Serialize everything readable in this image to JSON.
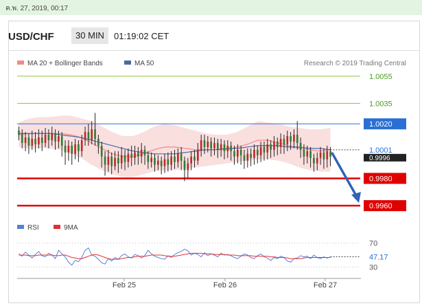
{
  "header": {
    "date_stamp": "ค.พ. 27, 2019, 00:17",
    "pair": "USD/CHF",
    "timeframe": "30 MIN",
    "clock": "01:19:02 CET"
  },
  "legend": {
    "bb_label": "MA 20 + Bollinger Bands",
    "ma50_label": "MA 50",
    "credit": "Research © 2019 Trading Central",
    "rsi_label": "RSI",
    "ma9_label": "9MA"
  },
  "colors": {
    "bull": "#c0262c",
    "bear": "#2e7d32",
    "wick": "#222222",
    "bb_fill": "#fadcdc",
    "ma20": "#f08a8a",
    "ma50": "#4a6aa5",
    "resistance": "#8cc63f",
    "pivot": "#2a6fd6",
    "support": "#e00000",
    "rsi": "#5b7fd6",
    "rsi_ma": "#e03030",
    "arrow": "#2f63b6"
  },
  "chart_data": {
    "type": "candlestick",
    "ylim": [
      0.9952,
      1.0068
    ],
    "x_ticks": [
      "Feb 25",
      "Feb 26",
      "Feb 27"
    ],
    "current_price": "1.0001",
    "current_price_alt": "0.9996",
    "levels": [
      {
        "label": "1.0055",
        "value": 1.0055,
        "kind": "resistance"
      },
      {
        "label": "1.0035",
        "value": 1.0035,
        "kind": "resistance"
      },
      {
        "label": "1.0020",
        "value": 1.002,
        "kind": "pivot"
      },
      {
        "label": "0.9980",
        "value": 0.998,
        "kind": "support"
      },
      {
        "label": "0.9960",
        "value": 0.996,
        "kind": "support"
      }
    ],
    "forecast_arrow": {
      "from": 0.9999,
      "to": 0.9962
    },
    "candles": [
      [
        1.0015,
        1.0012,
        1.0018,
        1.0008
      ],
      [
        1.0012,
        1.0006,
        1.0016,
        1.0002
      ],
      [
        1.0006,
        1.001,
        1.0014,
        1.0
      ],
      [
        1.001,
        1.0004,
        1.0013,
        0.9998
      ],
      [
        1.0004,
        1.0009,
        1.0015,
        1.0001
      ],
      [
        1.0009,
        1.0005,
        1.0014,
        0.9999
      ],
      [
        1.0005,
        1.001,
        1.0016,
        1.0002
      ],
      [
        1.001,
        1.0006,
        1.0015,
        1.0
      ],
      [
        1.0006,
        1.0012,
        1.0017,
        1.0003
      ],
      [
        1.0012,
        1.0008,
        1.0016,
        1.0002
      ],
      [
        1.0008,
        1.0013,
        1.0018,
        1.0004
      ],
      [
        1.0013,
        1.0007,
        1.0016,
        1.0001
      ],
      [
        1.0007,
        1.0011,
        1.0015,
        1.0002
      ],
      [
        1.0011,
        1.0004,
        1.0014,
        0.9996
      ],
      [
        1.0004,
        0.9999,
        1.0008,
        0.999
      ],
      [
        0.9999,
        1.0004,
        1.0008,
        0.9993
      ],
      [
        1.0004,
        0.9998,
        1.0007,
        0.999
      ],
      [
        0.9998,
        1.0005,
        1.0009,
        0.9994
      ],
      [
        1.0005,
        1.0,
        1.0008,
        0.9992
      ],
      [
        1.0,
        1.0008,
        1.0012,
        0.9996
      ],
      [
        1.0008,
        1.0014,
        1.0018,
        1.0004
      ],
      [
        1.0014,
        1.0008,
        1.002,
        1.0004
      ],
      [
        1.0008,
        1.0016,
        1.0022,
        1.0005
      ],
      [
        1.0016,
        1.0009,
        1.0028,
        1.0004
      ],
      [
        1.0009,
        1.0004,
        1.0012,
        0.9998
      ],
      [
        1.0004,
        0.9996,
        1.0007,
        0.9988
      ],
      [
        0.9996,
        0.999,
        1.0,
        0.9982
      ],
      [
        0.999,
        0.9996,
        1.0001,
        0.9985
      ],
      [
        0.9996,
        0.9989,
        0.9999,
        0.9983
      ],
      [
        0.9989,
        0.9995,
        1.0,
        0.9986
      ],
      [
        0.9995,
        0.9991,
        1.0,
        0.9984
      ],
      [
        0.9991,
        0.9997,
        1.0003,
        0.9987
      ],
      [
        0.9997,
        0.9992,
        1.0001,
        0.9986
      ],
      [
        0.9992,
        0.9998,
        1.0002,
        0.9988
      ],
      [
        0.9998,
        0.9995,
        1.0004,
        0.9989
      ],
      [
        0.9995,
        0.9999,
        1.0004,
        0.999
      ],
      [
        0.9999,
        0.9996,
        1.0003,
        0.999
      ],
      [
        0.9996,
        1.0001,
        1.0006,
        0.9991
      ],
      [
        1.0001,
        0.9997,
        1.0004,
        0.999
      ],
      [
        0.9997,
        0.9992,
        1.0,
        0.9987
      ],
      [
        0.9992,
        0.9995,
        0.9999,
        0.9988
      ],
      [
        0.9995,
        0.999,
        0.9998,
        0.9985
      ],
      [
        0.999,
        0.9993,
        0.9997,
        0.9986
      ],
      [
        0.9993,
        0.9989,
        0.9996,
        0.9983
      ],
      [
        0.9989,
        0.9994,
        0.9998,
        0.9984
      ],
      [
        0.9994,
        0.999,
        0.9999,
        0.9985
      ],
      [
        0.999,
        0.9996,
        1.0,
        0.9986
      ],
      [
        0.9996,
        0.9992,
        1.0001,
        0.9987
      ],
      [
        0.9992,
        0.9998,
        1.0002,
        0.9988
      ],
      [
        0.9998,
        0.9993,
        1.0003,
        0.9986
      ],
      [
        0.9993,
        0.9986,
        0.9996,
        0.9978
      ],
      [
        0.9986,
        0.9991,
        0.9995,
        0.998
      ],
      [
        0.9991,
        0.9996,
        1.0,
        0.9986
      ],
      [
        0.9996,
        0.9993,
        1.0001,
        0.9988
      ],
      [
        0.9993,
        1.0001,
        1.0006,
        0.999
      ],
      [
        1.0001,
        1.0008,
        1.0012,
        0.9996
      ],
      [
        1.0008,
        1.0003,
        1.0012,
        0.9998
      ],
      [
        1.0003,
        1.0007,
        1.0011,
        0.9999
      ],
      [
        1.0007,
        1.0002,
        1.001,
        0.9996
      ],
      [
        1.0002,
        1.0006,
        1.001,
        0.9997
      ],
      [
        1.0006,
        1.0001,
        1.0009,
        0.9995
      ],
      [
        1.0001,
        1.0005,
        1.0009,
        0.9996
      ],
      [
        1.0005,
        1.0,
        1.0008,
        0.9994
      ],
      [
        1.0,
        1.0004,
        1.0008,
        0.9995
      ],
      [
        1.0004,
        1.0,
        1.0007,
        0.9993
      ],
      [
        1.0,
        0.9996,
        1.0004,
        0.999
      ],
      [
        0.9996,
        1.0001,
        1.0005,
        0.9991
      ],
      [
        1.0001,
        0.9997,
        1.0004,
        0.999
      ],
      [
        0.9997,
        0.9993,
        1.0001,
        0.9987
      ],
      [
        0.9993,
        0.9998,
        1.0002,
        0.9988
      ],
      [
        0.9998,
        0.9995,
        1.0002,
        0.9989
      ],
      [
        0.9995,
        1.0001,
        1.0005,
        0.999
      ],
      [
        1.0001,
        0.9997,
        1.0004,
        0.9991
      ],
      [
        0.9997,
        1.0003,
        1.0007,
        0.9992
      ],
      [
        1.0003,
        0.9999,
        1.0007,
        0.9993
      ],
      [
        0.9999,
        1.0005,
        1.0009,
        0.9994
      ],
      [
        1.0005,
        1.0001,
        1.0008,
        0.9995
      ],
      [
        1.0001,
        1.0007,
        1.0011,
        0.9996
      ],
      [
        1.0007,
        1.0003,
        1.001,
        0.9997
      ],
      [
        1.0003,
        1.0009,
        1.0013,
        0.9998
      ],
      [
        1.0009,
        1.0005,
        1.0012,
        0.9998
      ],
      [
        1.0005,
        1.0011,
        1.0015,
        1.0
      ],
      [
        1.0011,
        1.0007,
        1.0014,
        1.0001
      ],
      [
        1.0007,
        1.0012,
        1.0016,
        1.0002
      ],
      [
        1.0012,
        1.0006,
        1.0022,
        1.0001
      ],
      [
        1.0006,
        1.0001,
        1.001,
        0.9995
      ],
      [
        1.0001,
        0.9996,
        1.0005,
        0.999
      ],
      [
        0.9996,
        1.0,
        1.0004,
        0.9991
      ],
      [
        1.0,
        0.9995,
        1.0003,
        0.9988
      ],
      [
        0.9995,
        0.9991,
        0.9998,
        0.9985
      ],
      [
        0.9991,
        0.9995,
        0.9999,
        0.9986
      ],
      [
        0.9995,
        0.9999,
        1.0003,
        0.999
      ],
      [
        0.9999,
        0.9994,
        1.0002,
        0.9987
      ],
      [
        0.9994,
        1.0,
        1.0004,
        0.9988
      ],
      [
        1.0,
        0.9996,
        1.0003,
        0.9989
      ]
    ],
    "bb_upper": [
      1.0021,
      1.0024,
      1.0025,
      1.0025,
      1.0026,
      1.0026,
      1.0024,
      1.0022,
      1.0018,
      1.0014,
      1.0011,
      1.0011,
      1.0014,
      1.0018,
      1.002,
      1.0019,
      1.0017,
      1.0015,
      1.0013,
      1.0012,
      1.0012,
      1.0014,
      1.0018,
      1.0022,
      1.0021,
      1.002,
      1.0018,
      1.0017,
      1.0016,
      1.0016,
      1.0017
    ],
    "bb_lower": [
      1.0003,
      1.0002,
      1.0002,
      1.0002,
      1.0001,
      0.9998,
      0.9995,
      0.999,
      0.9986,
      0.9983,
      0.9981,
      0.9981,
      0.9983,
      0.9985,
      0.9986,
      0.9986,
      0.9987,
      0.9988,
      0.9989,
      0.999,
      0.9991,
      0.9992,
      0.9993,
      0.9994,
      0.9994,
      0.9993,
      0.9991,
      0.9988,
      0.9986,
      0.9985,
      0.9985
    ],
    "ma20": [
      1.0012,
      1.0013,
      1.0013,
      1.0013,
      1.0013,
      1.0012,
      1.001,
      1.0006,
      1.0002,
      0.9998,
      0.9996,
      0.9996,
      0.9998,
      1.0001,
      1.0003,
      1.0003,
      1.0002,
      1.0001,
      1.0001,
      1.0001,
      1.0001,
      1.0003,
      1.0005,
      1.0008,
      1.0008,
      1.0006,
      1.0004,
      1.0002,
      1.0001,
      1.0,
      1.0001
    ],
    "ma50": [
      1.0013,
      1.0013,
      1.0013,
      1.0013,
      1.0012,
      1.0011,
      1.001,
      1.0008,
      1.0006,
      1.0004,
      1.0002,
      1.0,
      0.9999,
      0.9998,
      0.9998,
      0.9998,
      0.9999,
      1.0,
      1.0001,
      1.0001,
      1.0002,
      1.0002,
      1.0003,
      1.0004,
      1.0004,
      1.0004,
      1.0003,
      1.0003,
      1.0002,
      1.0002,
      1.0001
    ],
    "rsi_panel": {
      "ylim": [
        20,
        80
      ],
      "levels": [
        {
          "label": "70",
          "value": 70
        },
        {
          "label": "30",
          "value": 30
        }
      ],
      "current": "47.17",
      "rsi": [
        52,
        48,
        55,
        50,
        45,
        51,
        56,
        49,
        47,
        53,
        50,
        44,
        58,
        52,
        47,
        38,
        33,
        41,
        39,
        46,
        58,
        62,
        50,
        48,
        43,
        37,
        35,
        44,
        40,
        46,
        43,
        49,
        52,
        47,
        45,
        51,
        49,
        45,
        49,
        58,
        52,
        48,
        46,
        44,
        43,
        49,
        46,
        51,
        54,
        56,
        60,
        57,
        50,
        53,
        51,
        47,
        54,
        49,
        52,
        50,
        47,
        53,
        50,
        51,
        49,
        46,
        44,
        48,
        52,
        50,
        46,
        44,
        49,
        52,
        47,
        45,
        41,
        46,
        44,
        48,
        46,
        40,
        38,
        44,
        45,
        49,
        47,
        48,
        44,
        50,
        46,
        44,
        47,
        45,
        47
      ],
      "rsi_ma": [
        50,
        50,
        50,
        49,
        49,
        49,
        50,
        50,
        50,
        50,
        50,
        49,
        49,
        50,
        50,
        48,
        46,
        45,
        44,
        44,
        46,
        48,
        50,
        51,
        50,
        48,
        46,
        44,
        43,
        43,
        43,
        44,
        45,
        46,
        46,
        47,
        48,
        48,
        48,
        49,
        50,
        50,
        50,
        50,
        49,
        48,
        48,
        48,
        49,
        50,
        51,
        52,
        53,
        53,
        53,
        53,
        52,
        52,
        52,
        51,
        51,
        51,
        51,
        50,
        50,
        50,
        49,
        49,
        49,
        49,
        49,
        48,
        48,
        48,
        48,
        48,
        47,
        47,
        46,
        46,
        46,
        45,
        44,
        44,
        44,
        44,
        45,
        46,
        46,
        46,
        46,
        46,
        46,
        46,
        46
      ]
    }
  }
}
